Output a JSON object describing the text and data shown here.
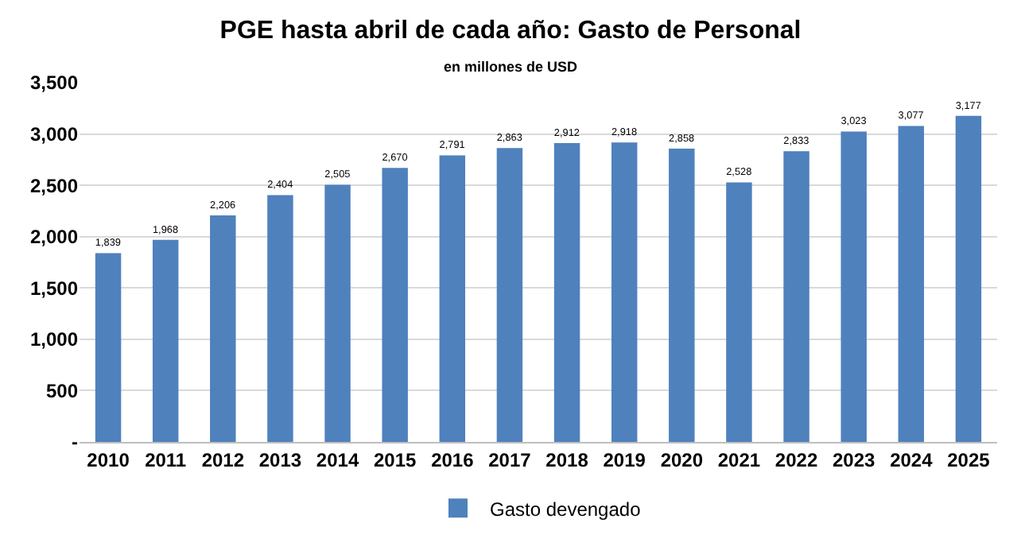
{
  "chart_data": {
    "type": "bar",
    "title": "PGE hasta abril de cada año: Gasto de Personal",
    "subtitle": "en millones de USD",
    "categories": [
      "2010",
      "2011",
      "2012",
      "2013",
      "2014",
      "2015",
      "2016",
      "2017",
      "2018",
      "2019",
      "2020",
      "2021",
      "2022",
      "2023",
      "2024",
      "2025"
    ],
    "series": [
      {
        "name": "Gasto devengado",
        "color": "#4f81bd",
        "values": [
          1839,
          1968,
          2206,
          2404,
          2505,
          2670,
          2791,
          2863,
          2912,
          2918,
          2858,
          2528,
          2833,
          3023,
          3077,
          3177
        ],
        "value_labels": [
          "1,839",
          "1,968",
          "2,206",
          "2,404",
          "2,505",
          "2,670",
          "2,791",
          "2,863",
          "2,912",
          "2,918",
          "2,858",
          "2,528",
          "2,833",
          "3,023",
          "3,077",
          "3,177"
        ]
      }
    ],
    "ylim": [
      0,
      3500
    ],
    "yticks": [
      {
        "value": 0,
        "label": "-"
      },
      {
        "value": 500,
        "label": "500"
      },
      {
        "value": 1000,
        "label": "1,000"
      },
      {
        "value": 1500,
        "label": "1,500"
      },
      {
        "value": 2000,
        "label": "2,000"
      },
      {
        "value": 2500,
        "label": "2,500"
      },
      {
        "value": 3000,
        "label": "3,000"
      },
      {
        "value": 3500,
        "label": "3,500"
      }
    ],
    "grid": "y",
    "legend": "bottom"
  }
}
